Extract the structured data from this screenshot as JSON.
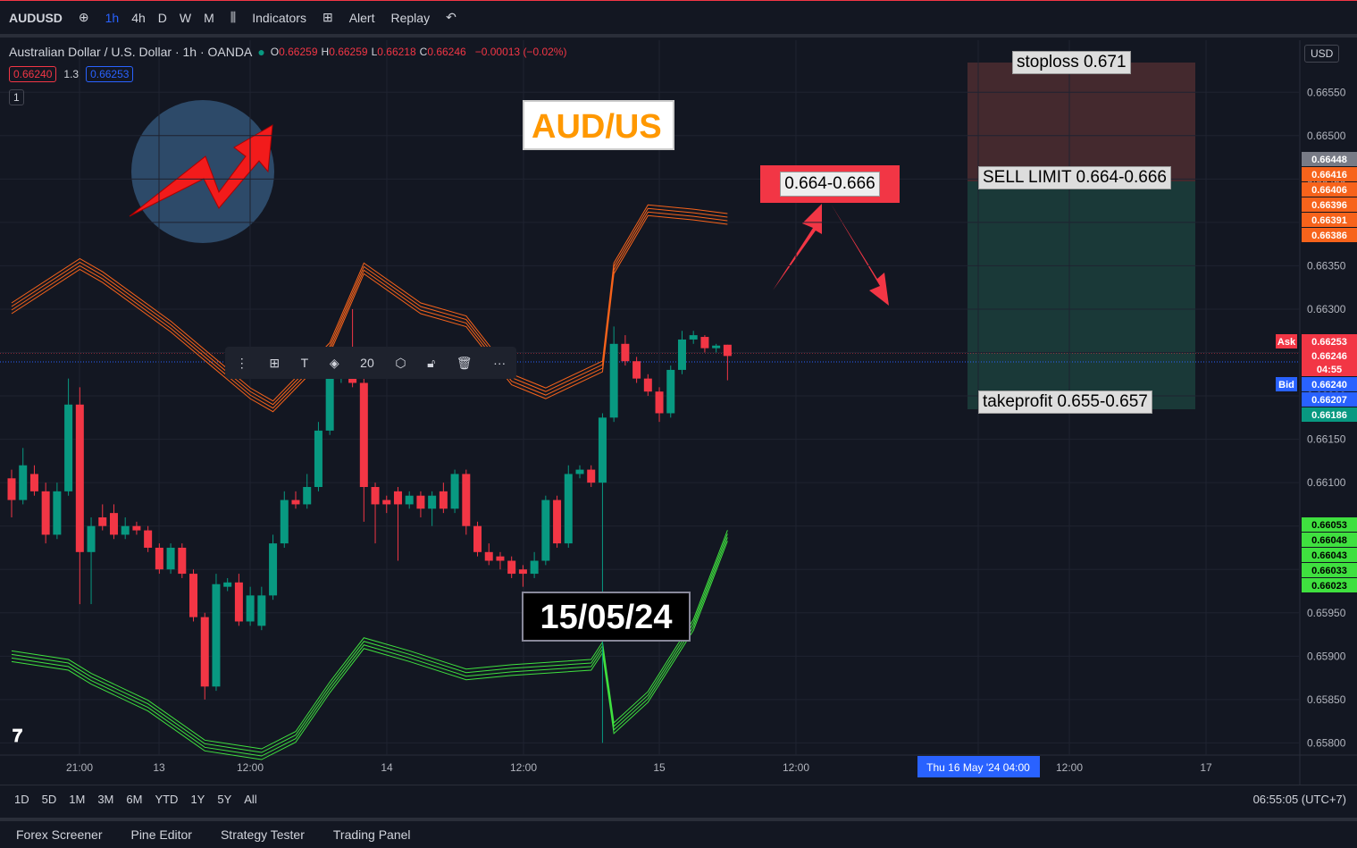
{
  "top_toolbar": {
    "symbol": "AUDUSD",
    "intervals": [
      "1h",
      "4h",
      "D",
      "W",
      "M"
    ],
    "indicators": "Indicators",
    "alert": "Alert",
    "replay": "Replay"
  },
  "legend": {
    "title": "Australian Dollar / U.S. Dollar · 1h · OANDA",
    "ohlc": [
      {
        "key": "O",
        "value": "0.66259"
      },
      {
        "key": "H",
        "value": "0.66259"
      },
      {
        "key": "L",
        "value": "0.66218"
      },
      {
        "key": "C",
        "value": "0.66246"
      }
    ],
    "change": "−0.00013 (−0.02%)",
    "sell": "0.66240",
    "spread": "1.3",
    "buy": "0.66253",
    "count": "1"
  },
  "drawing_toolbar": {
    "size": "20"
  },
  "currency": "USD",
  "chart_data": {
    "type": "candlestick",
    "up_color": "#089981",
    "down_color": "#f23645",
    "open": [
      0.66105,
      0.6608,
      0.6611,
      0.6609,
      0.6604,
      0.6609,
      0.6619,
      0.6602,
      0.6606,
      0.66065,
      0.6604,
      0.6605,
      0.66045,
      0.66025,
      0.66,
      0.66025,
      0.65995,
      0.65945,
      0.65865,
      0.6598,
      0.65985,
      0.6594,
      0.65935,
      0.6597,
      0.6603,
      0.6608,
      0.66075,
      0.66095,
      0.6616,
      0.6622,
      0.66224,
      0.66215,
      0.66095,
      0.6608,
      0.6609,
      0.66075,
      0.66085,
      0.6607,
      0.6609,
      0.6607,
      0.6611,
      0.6605,
      0.6602,
      0.66015,
      0.6601,
      0.66,
      0.65995,
      0.6601,
      0.6608,
      0.6603,
      0.6611,
      0.66115,
      0.661,
      0.66175,
      0.6626,
      0.6624,
      0.6622,
      0.66205,
      0.6618,
      0.6623,
      0.66265,
      0.66268,
      0.66255,
      0.66259
    ],
    "high": [
      0.66115,
      0.6614,
      0.6612,
      0.661,
      0.661,
      0.6622,
      0.6621,
      0.6606,
      0.66075,
      0.66075,
      0.6606,
      0.66055,
      0.6605,
      0.6603,
      0.6603,
      0.6603,
      0.66,
      0.6595,
      0.65995,
      0.6599,
      0.65995,
      0.6598,
      0.6598,
      0.6604,
      0.6609,
      0.6609,
      0.6611,
      0.6617,
      0.6623,
      0.6625,
      0.663,
      0.6622,
      0.661,
      0.66085,
      0.66095,
      0.6609,
      0.6609,
      0.6609,
      0.661,
      0.66115,
      0.66115,
      0.66055,
      0.6603,
      0.6602,
      0.66015,
      0.66005,
      0.6602,
      0.66085,
      0.66085,
      0.6612,
      0.6612,
      0.6612,
      0.6618,
      0.6628,
      0.6627,
      0.66245,
      0.66225,
      0.6621,
      0.66235,
      0.66275,
      0.66275,
      0.6627,
      0.6626,
      0.66259
    ],
    "low": [
      0.6606,
      0.66075,
      0.66085,
      0.6603,
      0.66035,
      0.66085,
      0.6596,
      0.6596,
      0.66045,
      0.66035,
      0.66035,
      0.6604,
      0.6602,
      0.65995,
      0.65995,
      0.6599,
      0.6594,
      0.6585,
      0.6586,
      0.65975,
      0.65935,
      0.65935,
      0.6593,
      0.65965,
      0.66025,
      0.6607,
      0.6607,
      0.6609,
      0.66155,
      0.66215,
      0.6621,
      0.66055,
      0.6603,
      0.66065,
      0.6601,
      0.6607,
      0.6606,
      0.6605,
      0.66065,
      0.66065,
      0.6604,
      0.66015,
      0.66005,
      0.66,
      0.6599,
      0.6598,
      0.6599,
      0.66005,
      0.66025,
      0.66025,
      0.66105,
      0.66095,
      0.658,
      0.6617,
      0.66235,
      0.66215,
      0.662,
      0.6617,
      0.66175,
      0.66225,
      0.6626,
      0.6625,
      0.6625,
      0.66218
    ],
    "close": [
      0.6608,
      0.6612,
      0.6609,
      0.6604,
      0.6609,
      0.6619,
      0.6602,
      0.6605,
      0.6605,
      0.6604,
      0.6605,
      0.66045,
      0.66025,
      0.66,
      0.66025,
      0.65995,
      0.65945,
      0.65865,
      0.65983,
      0.65985,
      0.6594,
      0.6597,
      0.6597,
      0.6603,
      0.6608,
      0.66075,
      0.66095,
      0.6616,
      0.6622,
      0.66235,
      0.66215,
      0.66095,
      0.66075,
      0.66075,
      0.66075,
      0.66085,
      0.6607,
      0.66085,
      0.6607,
      0.6611,
      0.6605,
      0.6602,
      0.6601,
      0.6601,
      0.65995,
      0.65995,
      0.6601,
      0.6608,
      0.6603,
      0.6611,
      0.66115,
      0.661,
      0.66175,
      0.6626,
      0.6624,
      0.6622,
      0.66205,
      0.6618,
      0.6623,
      0.66265,
      0.6627,
      0.66255,
      0.66258,
      0.66246
    ],
    "upper_band": {
      "color": "#f7631b",
      "x": [
        0,
        6,
        8,
        14,
        21,
        23,
        28,
        31,
        36,
        40,
        44,
        47,
        52,
        53,
        56,
        60,
        63
      ],
      "values": [
        0.66301,
        0.66352,
        0.66337,
        0.6628,
        0.66203,
        0.66188,
        0.66255,
        0.66347,
        0.66301,
        0.66286,
        0.66219,
        0.66203,
        0.66234,
        0.66347,
        0.66414,
        0.66409,
        0.66404
      ]
    },
    "lower_band": {
      "color": "#3fe03f",
      "x": [
        0,
        5,
        7,
        12,
        17,
        22,
        25,
        28,
        31,
        35,
        40,
        44,
        51,
        52,
        53,
        56,
        60,
        63
      ],
      "values": [
        0.659,
        0.6589,
        0.65874,
        0.65843,
        0.65797,
        0.65787,
        0.65807,
        0.65864,
        0.65915,
        0.659,
        0.65879,
        0.65884,
        0.6589,
        0.6591,
        0.65817,
        0.65853,
        0.65936,
        0.66039
      ]
    },
    "ylim": [
      0.65786,
      0.6661
    ],
    "yticks": [
      {
        "value": 0.6655,
        "label": "0.66550"
      },
      {
        "value": 0.665,
        "label": "0.66500"
      },
      {
        "value": 0.6645,
        "label": "0.66450"
      },
      {
        "value": 0.664,
        "label": "0.66400"
      },
      {
        "value": 0.6635,
        "label": "0.66350"
      },
      {
        "value": 0.663,
        "label": "0.66300"
      },
      {
        "value": 0.6625,
        "label": "0.66250"
      },
      {
        "value": 0.662,
        "label": "0.66200"
      },
      {
        "value": 0.6615,
        "label": "0.66150"
      },
      {
        "value": 0.661,
        "label": "0.66100"
      },
      {
        "value": 0.6605,
        "label": "0.66050"
      },
      {
        "value": 0.66,
        "label": "0.66000"
      },
      {
        "value": 0.6595,
        "label": "0.65950"
      },
      {
        "value": 0.659,
        "label": "0.65900"
      },
      {
        "value": 0.6585,
        "label": "0.65850"
      },
      {
        "value": 0.658,
        "label": "0.65800"
      }
    ],
    "time_labels": [
      "21:00",
      "13",
      "12:00",
      "14",
      "12:00",
      "15",
      "12:00",
      "Thu 16 May '24  04:00",
      "12:00",
      "17"
    ],
    "orange_tags": [
      "0.66448",
      "0.66416",
      "0.66406",
      "0.66396",
      "0.66391",
      "0.66386"
    ],
    "green_tags": [
      "0.66053",
      "0.66048",
      "0.66043",
      "0.66033",
      "0.66023"
    ],
    "quote_tags": [
      {
        "label": "Ask",
        "value": "0.66253"
      },
      {
        "label": "",
        "value": "0.66246"
      },
      {
        "label": "",
        "value": "04:55"
      },
      {
        "label": "Bid",
        "value": "0.66240"
      },
      {
        "label": "",
        "value": "0.66207"
      },
      {
        "label": "",
        "value": "0.66186"
      }
    ],
    "annotations": {
      "pair": "AUD/US",
      "zone": "0.664-0.666",
      "date": "15/05/24",
      "stoploss": "stoploss 0.671",
      "sell_limit": "SELL LIMIT 0.664-0.666",
      "takeprofit": "takeprofit 0.655-0.657"
    }
  },
  "bottom_bar": {
    "ranges": [
      "1D",
      "5D",
      "1M",
      "3M",
      "6M",
      "YTD",
      "1Y",
      "5Y",
      "All"
    ],
    "clock": "06:55:05 (UTC+7)"
  },
  "tabs": [
    "Forex Screener",
    "Pine Editor",
    "Strategy Tester",
    "Trading Panel"
  ]
}
